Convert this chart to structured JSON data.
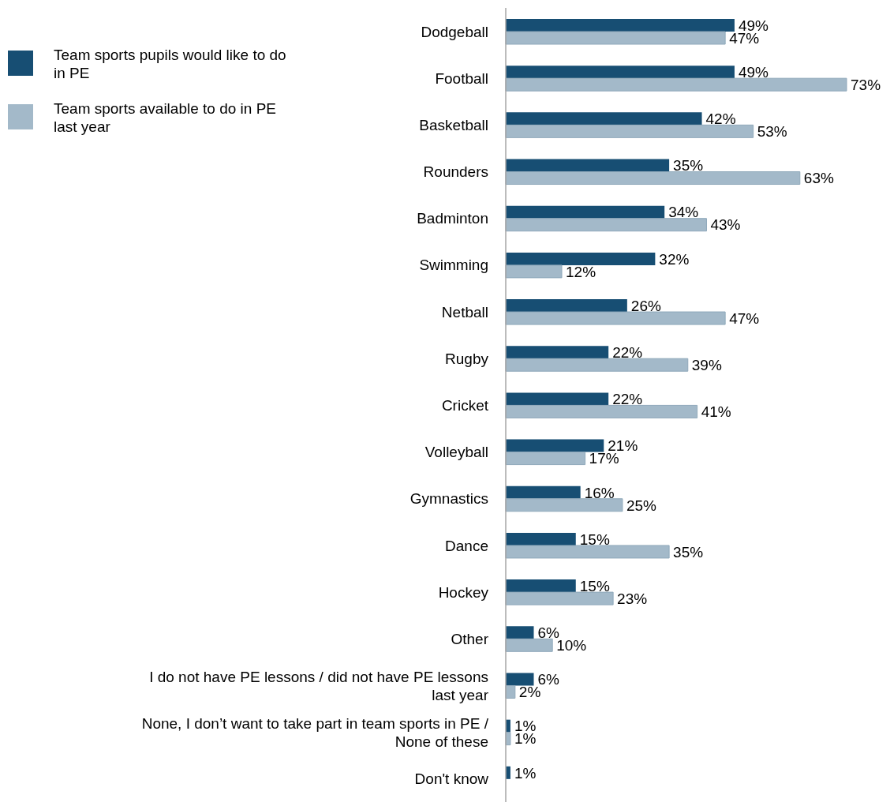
{
  "chart_data": {
    "type": "bar",
    "orientation": "horizontal",
    "legend": "top left",
    "categories": [
      "Dodgeball",
      "Football",
      "Basketball",
      "Rounders",
      "Badminton",
      "Swimming",
      "Netball",
      "Rugby",
      "Cricket",
      "Volleyball",
      "Gymnastics",
      "Dance",
      "Hockey",
      "Other",
      "I do not have PE lessons / did not have PE lessons last year",
      "None, I don’t want to take part in team sports in PE / None of these",
      "Don't know"
    ],
    "series": [
      {
        "name": "Team sports pupils would like to do in PE",
        "color": "#174e73",
        "values": [
          49,
          49,
          42,
          35,
          34,
          32,
          26,
          22,
          22,
          21,
          16,
          15,
          15,
          6,
          6,
          1,
          1
        ],
        "value_labels": [
          "49%",
          "49%",
          "42%",
          "35%",
          "34%",
          "32%",
          "26%",
          "22%",
          "22%",
          "21%",
          "16%",
          "15%",
          "15%",
          "6%",
          "6%",
          "1%",
          "1%"
        ]
      },
      {
        "name": "Team sports available to do in PE last year",
        "color": "#a3b9c9",
        "values": [
          47,
          73,
          53,
          63,
          43,
          12,
          47,
          39,
          41,
          17,
          25,
          35,
          23,
          10,
          2,
          1,
          null
        ],
        "value_labels": [
          "47%",
          "73%",
          "53%",
          "63%",
          "43%",
          "12%",
          "47%",
          "39%",
          "41%",
          "17%",
          "25%",
          "35%",
          "23%",
          "10%",
          "2%",
          "1%",
          null
        ]
      }
    ]
  }
}
